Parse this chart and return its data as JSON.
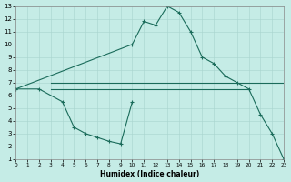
{
  "xlabel": "Humidex (Indice chaleur)",
  "background_color": "#c5ece6",
  "grid_color": "#a8d4ce",
  "line_color": "#1a6b5a",
  "xlim": [
    0,
    23
  ],
  "ylim": [
    1,
    13
  ],
  "xticks": [
    0,
    1,
    2,
    3,
    4,
    5,
    6,
    7,
    8,
    9,
    10,
    11,
    12,
    13,
    14,
    15,
    16,
    17,
    18,
    19,
    20,
    21,
    22,
    23
  ],
  "yticks": [
    1,
    2,
    3,
    4,
    5,
    6,
    7,
    8,
    9,
    10,
    11,
    12,
    13
  ],
  "curve_main_x": [
    0,
    10,
    11,
    12,
    13,
    14,
    15,
    16,
    17,
    18,
    19,
    20,
    21,
    22,
    23
  ],
  "curve_main_y": [
    6.5,
    10.0,
    11.8,
    11.5,
    13.0,
    12.5,
    11.0,
    9.0,
    8.5,
    7.5,
    7.0,
    6.5,
    4.5,
    3.0,
    1.0
  ],
  "curve_low_x": [
    0,
    2,
    4,
    5,
    6,
    7,
    8,
    9,
    10
  ],
  "curve_low_y": [
    6.5,
    6.5,
    5.5,
    3.5,
    3.0,
    2.7,
    2.4,
    2.2,
    5.5
  ],
  "hline1_x": [
    3,
    23
  ],
  "hline1_y": [
    7.0,
    7.0
  ],
  "hline2_x": [
    3,
    20
  ],
  "hline2_y": [
    6.5,
    6.5
  ]
}
